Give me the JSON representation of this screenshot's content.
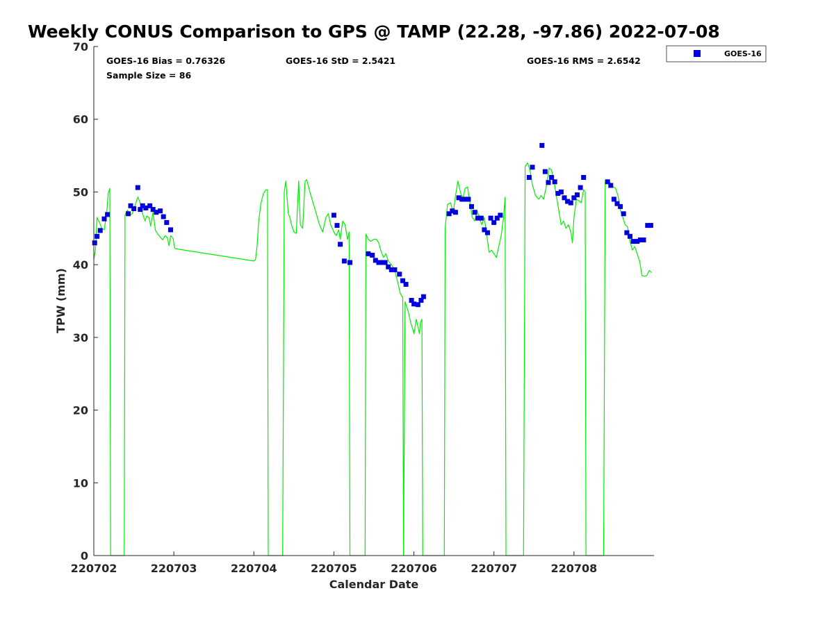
{
  "chart_data": {
    "type": "scatter",
    "title": "Weekly CONUS Comparison to GPS @ TAMP (22.28, -97.86) 2022-07-08",
    "xlabel": "Calendar Date",
    "ylabel": "TPW (mm)",
    "xlim": [
      0,
      7
    ],
    "ylim": [
      0,
      70
    ],
    "xticks": [
      {
        "value": 0,
        "label": "220702"
      },
      {
        "value": 1,
        "label": "220703"
      },
      {
        "value": 2,
        "label": "220704"
      },
      {
        "value": 3,
        "label": "220705"
      },
      {
        "value": 4,
        "label": "220706"
      },
      {
        "value": 5,
        "label": "220707"
      },
      {
        "value": 6,
        "label": "220708"
      }
    ],
    "yticks": [
      0,
      10,
      20,
      30,
      40,
      50,
      60,
      70
    ],
    "stats": {
      "bias": "GOES-16 Bias = 0.76326",
      "std": "GOES-16 StD = 2.5421",
      "rms": "GOES-16 RMS = 2.6542",
      "sample": "Sample Size = 86"
    },
    "legend": {
      "position": "top-right-outside",
      "label": "GOES-16"
    },
    "colors": {
      "goes": "#0000dd",
      "gps": "#00ee00"
    },
    "series": [
      {
        "name": "GOES-16",
        "marker": "square",
        "color": "#0000dd",
        "points": [
          [
            0.01,
            43.0
          ],
          [
            0.04,
            43.9
          ],
          [
            0.08,
            44.7
          ],
          [
            0.13,
            46.3
          ],
          [
            0.17,
            46.9
          ],
          [
            0.43,
            47.0
          ],
          [
            0.46,
            48.1
          ],
          [
            0.5,
            47.7
          ],
          [
            0.55,
            50.6
          ],
          [
            0.58,
            47.6
          ],
          [
            0.61,
            48.1
          ],
          [
            0.65,
            47.8
          ],
          [
            0.7,
            48.1
          ],
          [
            0.74,
            47.6
          ],
          [
            0.78,
            47.2
          ],
          [
            0.83,
            47.4
          ],
          [
            0.87,
            46.6
          ],
          [
            0.91,
            45.8
          ],
          [
            0.96,
            44.8
          ],
          [
            3.0,
            46.8
          ],
          [
            3.04,
            45.4
          ],
          [
            3.08,
            42.8
          ],
          [
            3.13,
            40.5
          ],
          [
            3.2,
            40.3
          ],
          [
            3.43,
            41.5
          ],
          [
            3.48,
            41.3
          ],
          [
            3.52,
            40.6
          ],
          [
            3.56,
            40.3
          ],
          [
            3.6,
            40.3
          ],
          [
            3.64,
            40.3
          ],
          [
            3.68,
            39.7
          ],
          [
            3.72,
            39.3
          ],
          [
            3.76,
            39.3
          ],
          [
            3.82,
            38.7
          ],
          [
            3.86,
            37.8
          ],
          [
            3.9,
            37.3
          ],
          [
            3.97,
            35.1
          ],
          [
            4.0,
            34.6
          ],
          [
            4.05,
            34.5
          ],
          [
            4.09,
            35.1
          ],
          [
            4.12,
            35.6
          ],
          [
            4.44,
            47.0
          ],
          [
            4.48,
            47.4
          ],
          [
            4.52,
            47.2
          ],
          [
            4.56,
            49.2
          ],
          [
            4.6,
            49.0
          ],
          [
            4.64,
            49.0
          ],
          [
            4.68,
            49.0
          ],
          [
            4.72,
            48.0
          ],
          [
            4.76,
            47.2
          ],
          [
            4.8,
            46.4
          ],
          [
            4.84,
            46.4
          ],
          [
            4.88,
            44.8
          ],
          [
            4.92,
            44.4
          ],
          [
            4.96,
            46.4
          ],
          [
            5.0,
            45.8
          ],
          [
            5.04,
            46.4
          ],
          [
            5.08,
            46.8
          ],
          [
            5.44,
            52.0
          ],
          [
            5.48,
            53.4
          ],
          [
            5.6,
            56.4
          ],
          [
            5.64,
            52.8
          ],
          [
            5.68,
            51.3
          ],
          [
            5.72,
            52.0
          ],
          [
            5.76,
            51.4
          ],
          [
            5.8,
            49.8
          ],
          [
            5.84,
            50.0
          ],
          [
            5.88,
            49.2
          ],
          [
            5.92,
            48.7
          ],
          [
            5.96,
            48.5
          ],
          [
            6.0,
            49.2
          ],
          [
            6.04,
            49.6
          ],
          [
            6.08,
            50.6
          ],
          [
            6.12,
            52.0
          ],
          [
            6.42,
            51.4
          ],
          [
            6.46,
            50.9
          ],
          [
            6.5,
            49.0
          ],
          [
            6.54,
            48.4
          ],
          [
            6.58,
            48.0
          ],
          [
            6.62,
            47.0
          ],
          [
            6.66,
            44.4
          ],
          [
            6.7,
            43.9
          ],
          [
            6.74,
            43.2
          ],
          [
            6.79,
            43.2
          ],
          [
            6.83,
            43.4
          ],
          [
            6.87,
            43.4
          ],
          [
            6.92,
            45.4
          ],
          [
            6.96,
            45.4
          ]
        ]
      },
      {
        "name": "GPS",
        "line": true,
        "color": "#00ee00",
        "points": [
          [
            0.0,
            40.7
          ],
          [
            0.02,
            42.0
          ],
          [
            0.04,
            46.5
          ],
          [
            0.07,
            45.8
          ],
          [
            0.1,
            45.0
          ],
          [
            0.13,
            44.8
          ],
          [
            0.16,
            47.0
          ],
          [
            0.18,
            49.8
          ],
          [
            0.2,
            50.5
          ],
          [
            0.21,
            0
          ],
          [
            0.38,
            0
          ],
          [
            0.39,
            46.8
          ],
          [
            0.42,
            47.5
          ],
          [
            0.45,
            46.8
          ],
          [
            0.48,
            47.0
          ],
          [
            0.51,
            48.0
          ],
          [
            0.55,
            49.3
          ],
          [
            0.58,
            48.5
          ],
          [
            0.61,
            47.0
          ],
          [
            0.64,
            46.0
          ],
          [
            0.66,
            46.7
          ],
          [
            0.69,
            46.5
          ],
          [
            0.71,
            45.3
          ],
          [
            0.74,
            47.2
          ],
          [
            0.77,
            44.7
          ],
          [
            0.8,
            44.2
          ],
          [
            0.83,
            43.8
          ],
          [
            0.86,
            43.4
          ],
          [
            0.89,
            44.0
          ],
          [
            0.92,
            43.7
          ],
          [
            0.94,
            42.6
          ],
          [
            0.96,
            44.0
          ],
          [
            0.99,
            43.6
          ],
          [
            1.01,
            42.3
          ],
          [
            1.02,
            42.2
          ],
          [
            2.0,
            40.5
          ],
          [
            2.02,
            40.7
          ],
          [
            2.04,
            42.5
          ],
          [
            2.06,
            46.0
          ],
          [
            2.09,
            48.5
          ],
          [
            2.12,
            49.8
          ],
          [
            2.15,
            50.3
          ],
          [
            2.17,
            50.3
          ],
          [
            2.18,
            0
          ],
          [
            2.36,
            0
          ],
          [
            2.38,
            50.0
          ],
          [
            2.4,
            51.5
          ],
          [
            2.43,
            47.0
          ],
          [
            2.45,
            46.5
          ],
          [
            2.47,
            45.5
          ],
          [
            2.5,
            44.5
          ],
          [
            2.53,
            44.3
          ],
          [
            2.56,
            51.5
          ],
          [
            2.58,
            45.5
          ],
          [
            2.61,
            45.0
          ],
          [
            2.64,
            51.5
          ],
          [
            2.66,
            51.7
          ],
          [
            2.7,
            50.0
          ],
          [
            2.74,
            48.5
          ],
          [
            2.78,
            47.0
          ],
          [
            2.82,
            45.5
          ],
          [
            2.86,
            44.5
          ],
          [
            2.9,
            46.5
          ],
          [
            2.93,
            47.0
          ],
          [
            2.96,
            45.5
          ],
          [
            3.0,
            44.5
          ],
          [
            3.03,
            44.0
          ],
          [
            3.06,
            44.8
          ],
          [
            3.08,
            43.5
          ],
          [
            3.11,
            46.0
          ],
          [
            3.14,
            45.5
          ],
          [
            3.17,
            43.5
          ],
          [
            3.19,
            44.5
          ],
          [
            3.2,
            0
          ],
          [
            3.39,
            0
          ],
          [
            3.4,
            44.2
          ],
          [
            3.43,
            43.5
          ],
          [
            3.46,
            43.2
          ],
          [
            3.5,
            43.5
          ],
          [
            3.53,
            43.5
          ],
          [
            3.56,
            43.0
          ],
          [
            3.59,
            41.8
          ],
          [
            3.62,
            41.0
          ],
          [
            3.65,
            41.5
          ],
          [
            3.68,
            40.5
          ],
          [
            3.72,
            40.0
          ],
          [
            3.76,
            39.3
          ],
          [
            3.8,
            37.5
          ],
          [
            3.83,
            36.0
          ],
          [
            3.86,
            35.5
          ],
          [
            3.87,
            0
          ],
          [
            3.89,
            34.9
          ],
          [
            3.93,
            33.5
          ],
          [
            3.96,
            32.0
          ],
          [
            3.99,
            31.0
          ],
          [
            4.0,
            30.5
          ],
          [
            4.03,
            32.5
          ],
          [
            4.05,
            31.5
          ],
          [
            4.07,
            30.5
          ],
          [
            4.08,
            32.0
          ],
          [
            4.1,
            32.5
          ],
          [
            4.11,
            0
          ],
          [
            4.38,
            0
          ],
          [
            4.39,
            45.0
          ],
          [
            4.42,
            48.3
          ],
          [
            4.46,
            48.5
          ],
          [
            4.49,
            47.0
          ],
          [
            4.52,
            49.5
          ],
          [
            4.55,
            51.5
          ],
          [
            4.58,
            50.0
          ],
          [
            4.61,
            49.0
          ],
          [
            4.64,
            50.5
          ],
          [
            4.67,
            50.7
          ],
          [
            4.7,
            48.5
          ],
          [
            4.73,
            46.5
          ],
          [
            4.76,
            46.0
          ],
          [
            4.79,
            47.5
          ],
          [
            4.82,
            46.3
          ],
          [
            4.85,
            45.5
          ],
          [
            4.88,
            46.5
          ],
          [
            4.91,
            44.0
          ],
          [
            4.94,
            41.7
          ],
          [
            4.97,
            42.0
          ],
          [
            5.0,
            41.5
          ],
          [
            5.03,
            41.0
          ],
          [
            5.06,
            42.5
          ],
          [
            5.09,
            44.0
          ],
          [
            5.12,
            46.5
          ],
          [
            5.14,
            49.3
          ],
          [
            5.15,
            0
          ],
          [
            5.37,
            0
          ],
          [
            5.39,
            53.5
          ],
          [
            5.42,
            54.0
          ],
          [
            5.45,
            53.0
          ],
          [
            5.48,
            51.0
          ],
          [
            5.52,
            49.5
          ],
          [
            5.56,
            49.0
          ],
          [
            5.59,
            49.5
          ],
          [
            5.62,
            49.0
          ],
          [
            5.65,
            50.5
          ],
          [
            5.69,
            53.3
          ],
          [
            5.72,
            53.0
          ],
          [
            5.75,
            51.5
          ],
          [
            5.78,
            49.5
          ],
          [
            5.81,
            47.5
          ],
          [
            5.84,
            45.5
          ],
          [
            5.87,
            46.0
          ],
          [
            5.9,
            45.0
          ],
          [
            5.93,
            45.5
          ],
          [
            5.96,
            44.5
          ],
          [
            5.98,
            43.0
          ],
          [
            6.0,
            46.5
          ],
          [
            6.03,
            49.0
          ],
          [
            6.06,
            48.8
          ],
          [
            6.09,
            48.5
          ],
          [
            6.12,
            50.3
          ],
          [
            6.14,
            50.0
          ],
          [
            6.15,
            0
          ],
          [
            6.37,
            0
          ],
          [
            6.39,
            51.5
          ],
          [
            6.42,
            51.7
          ],
          [
            6.45,
            51.3
          ],
          [
            6.48,
            50.8
          ],
          [
            6.52,
            50.5
          ],
          [
            6.55,
            49.5
          ],
          [
            6.58,
            47.5
          ],
          [
            6.61,
            46.5
          ],
          [
            6.64,
            45.5
          ],
          [
            6.67,
            45.2
          ],
          [
            6.7,
            43.2
          ],
          [
            6.73,
            42.0
          ],
          [
            6.76,
            42.5
          ],
          [
            6.79,
            41.5
          ],
          [
            6.82,
            40.5
          ],
          [
            6.85,
            38.5
          ],
          [
            6.88,
            38.4
          ],
          [
            6.91,
            38.5
          ],
          [
            6.94,
            39.2
          ],
          [
            6.97,
            38.9
          ]
        ]
      }
    ]
  }
}
